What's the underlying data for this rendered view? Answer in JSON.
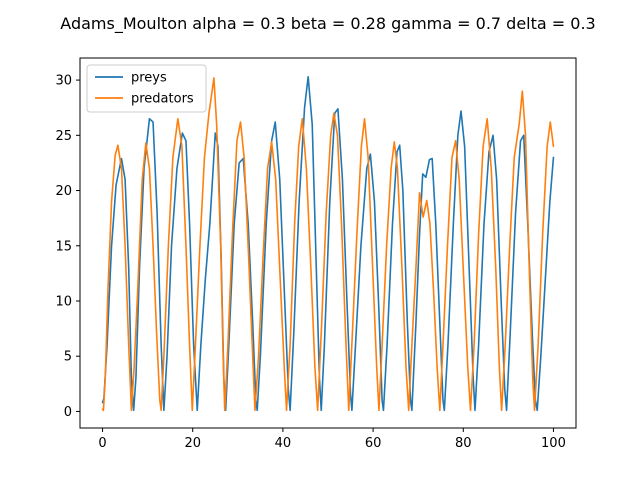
{
  "chart_data": {
    "type": "line",
    "title": "Adams_Moulton alpha = 0.3 beta = 0.28 gamma = 0.7 delta = 0.3",
    "xlabel": "",
    "ylabel": "",
    "xlim": [
      -5,
      105
    ],
    "ylim": [
      -1.5,
      32
    ],
    "xticks": [
      0,
      20,
      40,
      60,
      80,
      100
    ],
    "yticks": [
      0,
      5,
      10,
      15,
      20,
      25,
      30
    ],
    "grid": false,
    "legend_position": "top-left",
    "series": [
      {
        "name": "preys",
        "color": "#1f77b4",
        "points": [
          [
            0,
            0.8
          ],
          [
            0.3,
            1.2
          ],
          [
            1.0,
            6
          ],
          [
            2.0,
            15
          ],
          [
            3.0,
            20.5
          ],
          [
            4.2,
            22.9
          ],
          [
            5.0,
            21
          ],
          [
            5.8,
            13
          ],
          [
            6.4,
            3
          ],
          [
            6.9,
            0.1
          ],
          [
            7.4,
            3
          ],
          [
            8.2,
            13
          ],
          [
            9.2,
            22
          ],
          [
            10.4,
            26.5
          ],
          [
            11.2,
            26.2
          ],
          [
            12.1,
            18
          ],
          [
            13.0,
            6
          ],
          [
            13.6,
            0.1
          ],
          [
            14.3,
            5
          ],
          [
            15.3,
            15
          ],
          [
            16.5,
            22
          ],
          [
            17.7,
            25.2
          ],
          [
            18.5,
            24.5
          ],
          [
            19.3,
            17
          ],
          [
            20.2,
            6
          ],
          [
            21.0,
            0.1
          ],
          [
            21.8,
            6
          ],
          [
            22.8,
            12
          ],
          [
            23.8,
            17
          ],
          [
            25.0,
            25.2
          ],
          [
            25.6,
            24
          ],
          [
            26.3,
            14
          ],
          [
            26.9,
            3
          ],
          [
            27.3,
            0.1
          ],
          [
            28.0,
            6
          ],
          [
            29.2,
            17
          ],
          [
            30.3,
            22.5
          ],
          [
            31.2,
            22.9
          ],
          [
            32.3,
            17
          ],
          [
            33.3,
            8
          ],
          [
            34.0,
            1
          ],
          [
            34.3,
            0.1
          ],
          [
            35.0,
            5
          ],
          [
            36.3,
            17
          ],
          [
            37.5,
            24.5
          ],
          [
            38.3,
            26.2
          ],
          [
            39.3,
            21
          ],
          [
            40.3,
            11
          ],
          [
            41.2,
            2
          ],
          [
            41.6,
            0.1
          ],
          [
            42.4,
            7
          ],
          [
            43.6,
            19
          ],
          [
            44.8,
            27.5
          ],
          [
            45.6,
            30.3
          ],
          [
            46.5,
            26
          ],
          [
            47.4,
            13
          ],
          [
            48.1,
            3
          ],
          [
            48.5,
            0.1
          ],
          [
            49.2,
            6
          ],
          [
            50.4,
            19
          ],
          [
            51.5,
            27
          ],
          [
            52.2,
            27.4
          ],
          [
            53.2,
            21
          ],
          [
            54.2,
            10
          ],
          [
            55.0,
            1.5
          ],
          [
            55.3,
            0.1
          ],
          [
            56.1,
            6
          ],
          [
            57.3,
            15
          ],
          [
            58.6,
            22
          ],
          [
            59.4,
            23.3
          ],
          [
            60.3,
            19
          ],
          [
            61.3,
            9
          ],
          [
            62.0,
            1
          ],
          [
            62.3,
            0.1
          ],
          [
            63.1,
            6
          ],
          [
            64.3,
            17
          ],
          [
            65.3,
            23.5
          ],
          [
            65.9,
            24.1
          ],
          [
            66.6,
            20
          ],
          [
            67.6,
            8
          ],
          [
            68.3,
            1
          ],
          [
            68.6,
            0.1
          ],
          [
            69.5,
            8
          ],
          [
            70.3,
            16
          ],
          [
            71.0,
            21.5
          ],
          [
            71.7,
            21.2
          ],
          [
            72.5,
            22.8
          ],
          [
            73.1,
            22.9
          ],
          [
            73.9,
            17
          ],
          [
            74.8,
            8
          ],
          [
            75.5,
            1
          ],
          [
            75.8,
            0.1
          ],
          [
            76.6,
            6
          ],
          [
            77.8,
            17
          ],
          [
            78.8,
            25
          ],
          [
            79.5,
            27.2
          ],
          [
            80.3,
            24
          ],
          [
            81.3,
            13
          ],
          [
            82.2,
            3
          ],
          [
            82.6,
            0.1
          ],
          [
            83.4,
            6
          ],
          [
            84.6,
            17
          ],
          [
            85.7,
            23.5
          ],
          [
            86.6,
            25
          ],
          [
            87.4,
            21
          ],
          [
            88.4,
            10
          ],
          [
            89.2,
            2
          ],
          [
            89.6,
            0.1
          ],
          [
            90.4,
            7
          ],
          [
            91.6,
            18
          ],
          [
            92.7,
            24.5
          ],
          [
            93.4,
            25
          ],
          [
            94.3,
            17
          ],
          [
            95.3,
            7
          ],
          [
            96.0,
            1
          ],
          [
            96.4,
            0.1
          ],
          [
            97.2,
            5
          ],
          [
            98.2,
            12
          ],
          [
            99.2,
            19
          ],
          [
            100,
            23
          ]
        ]
      },
      {
        "name": "predators",
        "color": "#ff7f0e",
        "points": [
          [
            0,
            0.2
          ],
          [
            0.2,
            0.1
          ],
          [
            0.6,
            3
          ],
          [
            1.2,
            11
          ],
          [
            2.0,
            19
          ],
          [
            2.8,
            23.2
          ],
          [
            3.4,
            24.1
          ],
          [
            4.2,
            22
          ],
          [
            5.0,
            15
          ],
          [
            5.8,
            6
          ],
          [
            6.4,
            0.1
          ],
          [
            7.0,
            4
          ],
          [
            7.8,
            11
          ],
          [
            8.8,
            21
          ],
          [
            9.6,
            24.3
          ],
          [
            10.4,
            22
          ],
          [
            11.2,
            15
          ],
          [
            12.0,
            7
          ],
          [
            12.7,
            1
          ],
          [
            13.0,
            0.1
          ],
          [
            13.6,
            5
          ],
          [
            14.6,
            15
          ],
          [
            15.6,
            23
          ],
          [
            16.7,
            26.5
          ],
          [
            17.6,
            24
          ],
          [
            18.5,
            15
          ],
          [
            19.3,
            6
          ],
          [
            19.9,
            0.1
          ],
          [
            20.6,
            6
          ],
          [
            21.6,
            15
          ],
          [
            22.6,
            23
          ],
          [
            23.6,
            27
          ],
          [
            24.7,
            30.2
          ],
          [
            25.3,
            26
          ],
          [
            26.2,
            15
          ],
          [
            26.8,
            4
          ],
          [
            27.1,
            0.1
          ],
          [
            27.8,
            6
          ],
          [
            28.8,
            16
          ],
          [
            29.8,
            24.5
          ],
          [
            30.6,
            26.2
          ],
          [
            31.4,
            23
          ],
          [
            32.4,
            14
          ],
          [
            33.3,
            5
          ],
          [
            33.8,
            0.1
          ],
          [
            34.6,
            5
          ],
          [
            35.6,
            14
          ],
          [
            36.6,
            22
          ],
          [
            37.5,
            24.4
          ],
          [
            38.4,
            21
          ],
          [
            39.4,
            12
          ],
          [
            40.3,
            4
          ],
          [
            40.8,
            0.1
          ],
          [
            41.6,
            6
          ],
          [
            42.6,
            17
          ],
          [
            43.5,
            24
          ],
          [
            44.3,
            26.5
          ],
          [
            45.2,
            22
          ],
          [
            46.2,
            13
          ],
          [
            47.1,
            4
          ],
          [
            47.7,
            0.1
          ],
          [
            48.6,
            8
          ],
          [
            49.6,
            18
          ],
          [
            50.6,
            25
          ],
          [
            51.3,
            27
          ],
          [
            52.1,
            25
          ],
          [
            53.0,
            17
          ],
          [
            53.9,
            7
          ],
          [
            54.6,
            0.1
          ],
          [
            55.4,
            7
          ],
          [
            56.4,
            16
          ],
          [
            57.4,
            24
          ],
          [
            58.1,
            26.5
          ],
          [
            58.9,
            23
          ],
          [
            59.9,
            13
          ],
          [
            60.8,
            4
          ],
          [
            61.3,
            0.1
          ],
          [
            62.0,
            6
          ],
          [
            63.0,
            15
          ],
          [
            64.0,
            22
          ],
          [
            64.7,
            24.4
          ],
          [
            65.4,
            22
          ],
          [
            66.4,
            13
          ],
          [
            67.3,
            4
          ],
          [
            67.9,
            0.1
          ],
          [
            68.6,
            6
          ],
          [
            69.5,
            13
          ],
          [
            70.3,
            19.8
          ],
          [
            71.1,
            17.6
          ],
          [
            71.9,
            19.1
          ],
          [
            72.6,
            17
          ],
          [
            73.4,
            11
          ],
          [
            74.2,
            4
          ],
          [
            74.8,
            0.1
          ],
          [
            75.5,
            6
          ],
          [
            76.5,
            15
          ],
          [
            77.5,
            23
          ],
          [
            78.3,
            24.5
          ],
          [
            79.1,
            21
          ],
          [
            80.1,
            12
          ],
          [
            81.0,
            4
          ],
          [
            81.6,
            0.1
          ],
          [
            82.4,
            6
          ],
          [
            83.4,
            16
          ],
          [
            84.4,
            24
          ],
          [
            85.3,
            26.5
          ],
          [
            86.2,
            22
          ],
          [
            87.2,
            13
          ],
          [
            88.0,
            4
          ],
          [
            88.5,
            0.1
          ],
          [
            89.3,
            6
          ],
          [
            90.3,
            15
          ],
          [
            91.3,
            23
          ],
          [
            92.4,
            26
          ],
          [
            93.1,
            29
          ],
          [
            93.8,
            25
          ],
          [
            94.7,
            12
          ],
          [
            95.4,
            3
          ],
          [
            95.8,
            0.1
          ],
          [
            96.6,
            6
          ],
          [
            97.6,
            16
          ],
          [
            98.6,
            24
          ],
          [
            99.3,
            26.2
          ],
          [
            100,
            24
          ]
        ]
      }
    ]
  }
}
